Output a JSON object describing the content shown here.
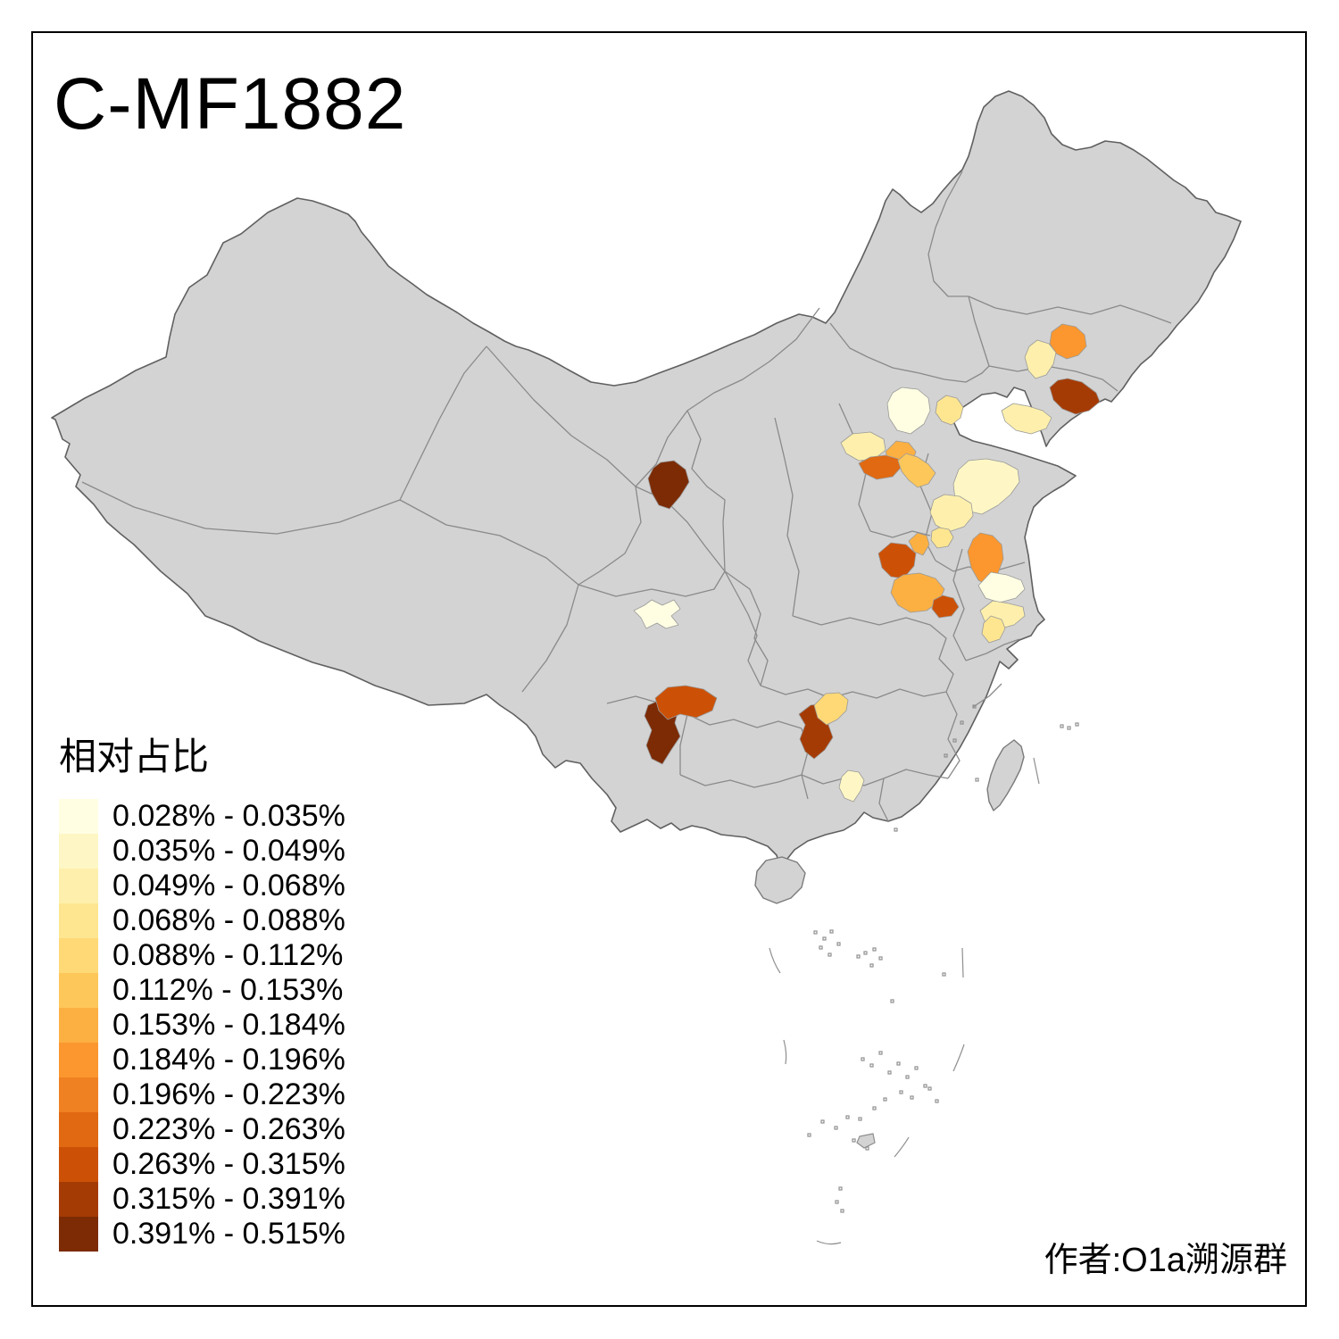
{
  "header": {
    "title": "C-MF1882"
  },
  "footer": {
    "attribution": "作者:O1a溯源群"
  },
  "legend": {
    "title": "相对占比",
    "classes": [
      {
        "label": "0.028% - 0.035%",
        "color": "#FFFEE3"
      },
      {
        "label": "0.035% - 0.049%",
        "color": "#FEF7C5"
      },
      {
        "label": "0.049% - 0.068%",
        "color": "#FEF0AC"
      },
      {
        "label": "0.068% - 0.088%",
        "color": "#FEE691"
      },
      {
        "label": "0.088% - 0.112%",
        "color": "#FED976"
      },
      {
        "label": "0.112% - 0.153%",
        "color": "#FEC75A"
      },
      {
        "label": "0.153% - 0.184%",
        "color": "#FDB042"
      },
      {
        "label": "0.184% - 0.196%",
        "color": "#FB972E"
      },
      {
        "label": "0.196% - 0.223%",
        "color": "#F08122"
      },
      {
        "label": "0.223% - 0.263%",
        "color": "#E06911"
      },
      {
        "label": "0.263% - 0.315%",
        "color": "#CC5106"
      },
      {
        "label": "0.315% - 0.391%",
        "color": "#A53B04"
      },
      {
        "label": "0.391% - 0.515%",
        "color": "#7C2B05"
      }
    ]
  },
  "map": {
    "base_color": "#D3D3D3",
    "background": "#FFFFFF",
    "regions": [
      {
        "id": "r01",
        "legend_class": 8,
        "color": "#FB972E"
      },
      {
        "id": "r02",
        "legend_class": 3,
        "color": "#FEF0AC"
      },
      {
        "id": "r03",
        "legend_class": 12,
        "color": "#A53B04"
      },
      {
        "id": "r04",
        "legend_class": 3,
        "color": "#FEF0AC"
      },
      {
        "id": "r05",
        "legend_class": 1,
        "color": "#FFFEE3"
      },
      {
        "id": "r06",
        "legend_class": 4,
        "color": "#FEE691"
      },
      {
        "id": "r07",
        "legend_class": 3,
        "color": "#FEF0AC"
      },
      {
        "id": "r08",
        "legend_class": 7,
        "color": "#FDB042"
      },
      {
        "id": "r09",
        "legend_class": 10,
        "color": "#E06911"
      },
      {
        "id": "r10",
        "legend_class": 6,
        "color": "#FEC75A"
      },
      {
        "id": "r11",
        "legend_class": 2,
        "color": "#FEF7C5"
      },
      {
        "id": "r12",
        "legend_class": 3,
        "color": "#FEF0AC"
      },
      {
        "id": "r13",
        "legend_class": 4,
        "color": "#FEE691"
      },
      {
        "id": "r14",
        "legend_class": 13,
        "color": "#7C2B05"
      },
      {
        "id": "r15",
        "legend_class": 1,
        "color": "#FFFEE3"
      },
      {
        "id": "r16",
        "legend_class": 13,
        "color": "#7C2B05"
      },
      {
        "id": "r17",
        "legend_class": 11,
        "color": "#CC5106"
      },
      {
        "id": "r18",
        "legend_class": 12,
        "color": "#A53B04"
      },
      {
        "id": "r19",
        "legend_class": 5,
        "color": "#FED976"
      },
      {
        "id": "r20",
        "legend_class": 2,
        "color": "#FEF7C5"
      },
      {
        "id": "r21",
        "legend_class": 11,
        "color": "#CC5106"
      },
      {
        "id": "r22",
        "legend_class": 7,
        "color": "#FDB042"
      },
      {
        "id": "r23",
        "legend_class": 7,
        "color": "#FDB042"
      },
      {
        "id": "r24",
        "legend_class": 11,
        "color": "#CC5106"
      },
      {
        "id": "r25",
        "legend_class": 8,
        "color": "#FB972E"
      },
      {
        "id": "r26",
        "legend_class": 1,
        "color": "#FFFEE3"
      },
      {
        "id": "r27",
        "legend_class": 3,
        "color": "#FEF0AC"
      },
      {
        "id": "r28",
        "legend_class": 4,
        "color": "#FEE691"
      }
    ]
  }
}
